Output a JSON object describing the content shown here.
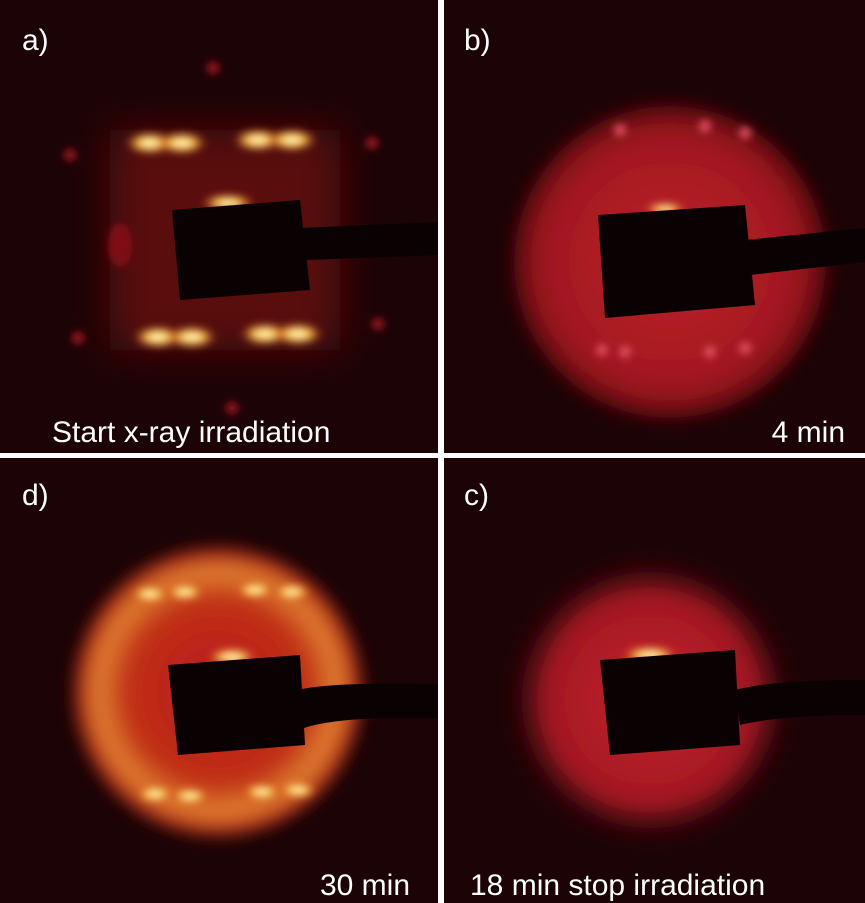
{
  "panels": [
    {
      "label": "a)",
      "caption": "Start x-ray irradiation"
    },
    {
      "label": "b)",
      "caption": "4 min"
    },
    {
      "label": "d)",
      "caption": "30 min"
    },
    {
      "label": "c)",
      "caption": "18 min stop irradiation"
    }
  ]
}
